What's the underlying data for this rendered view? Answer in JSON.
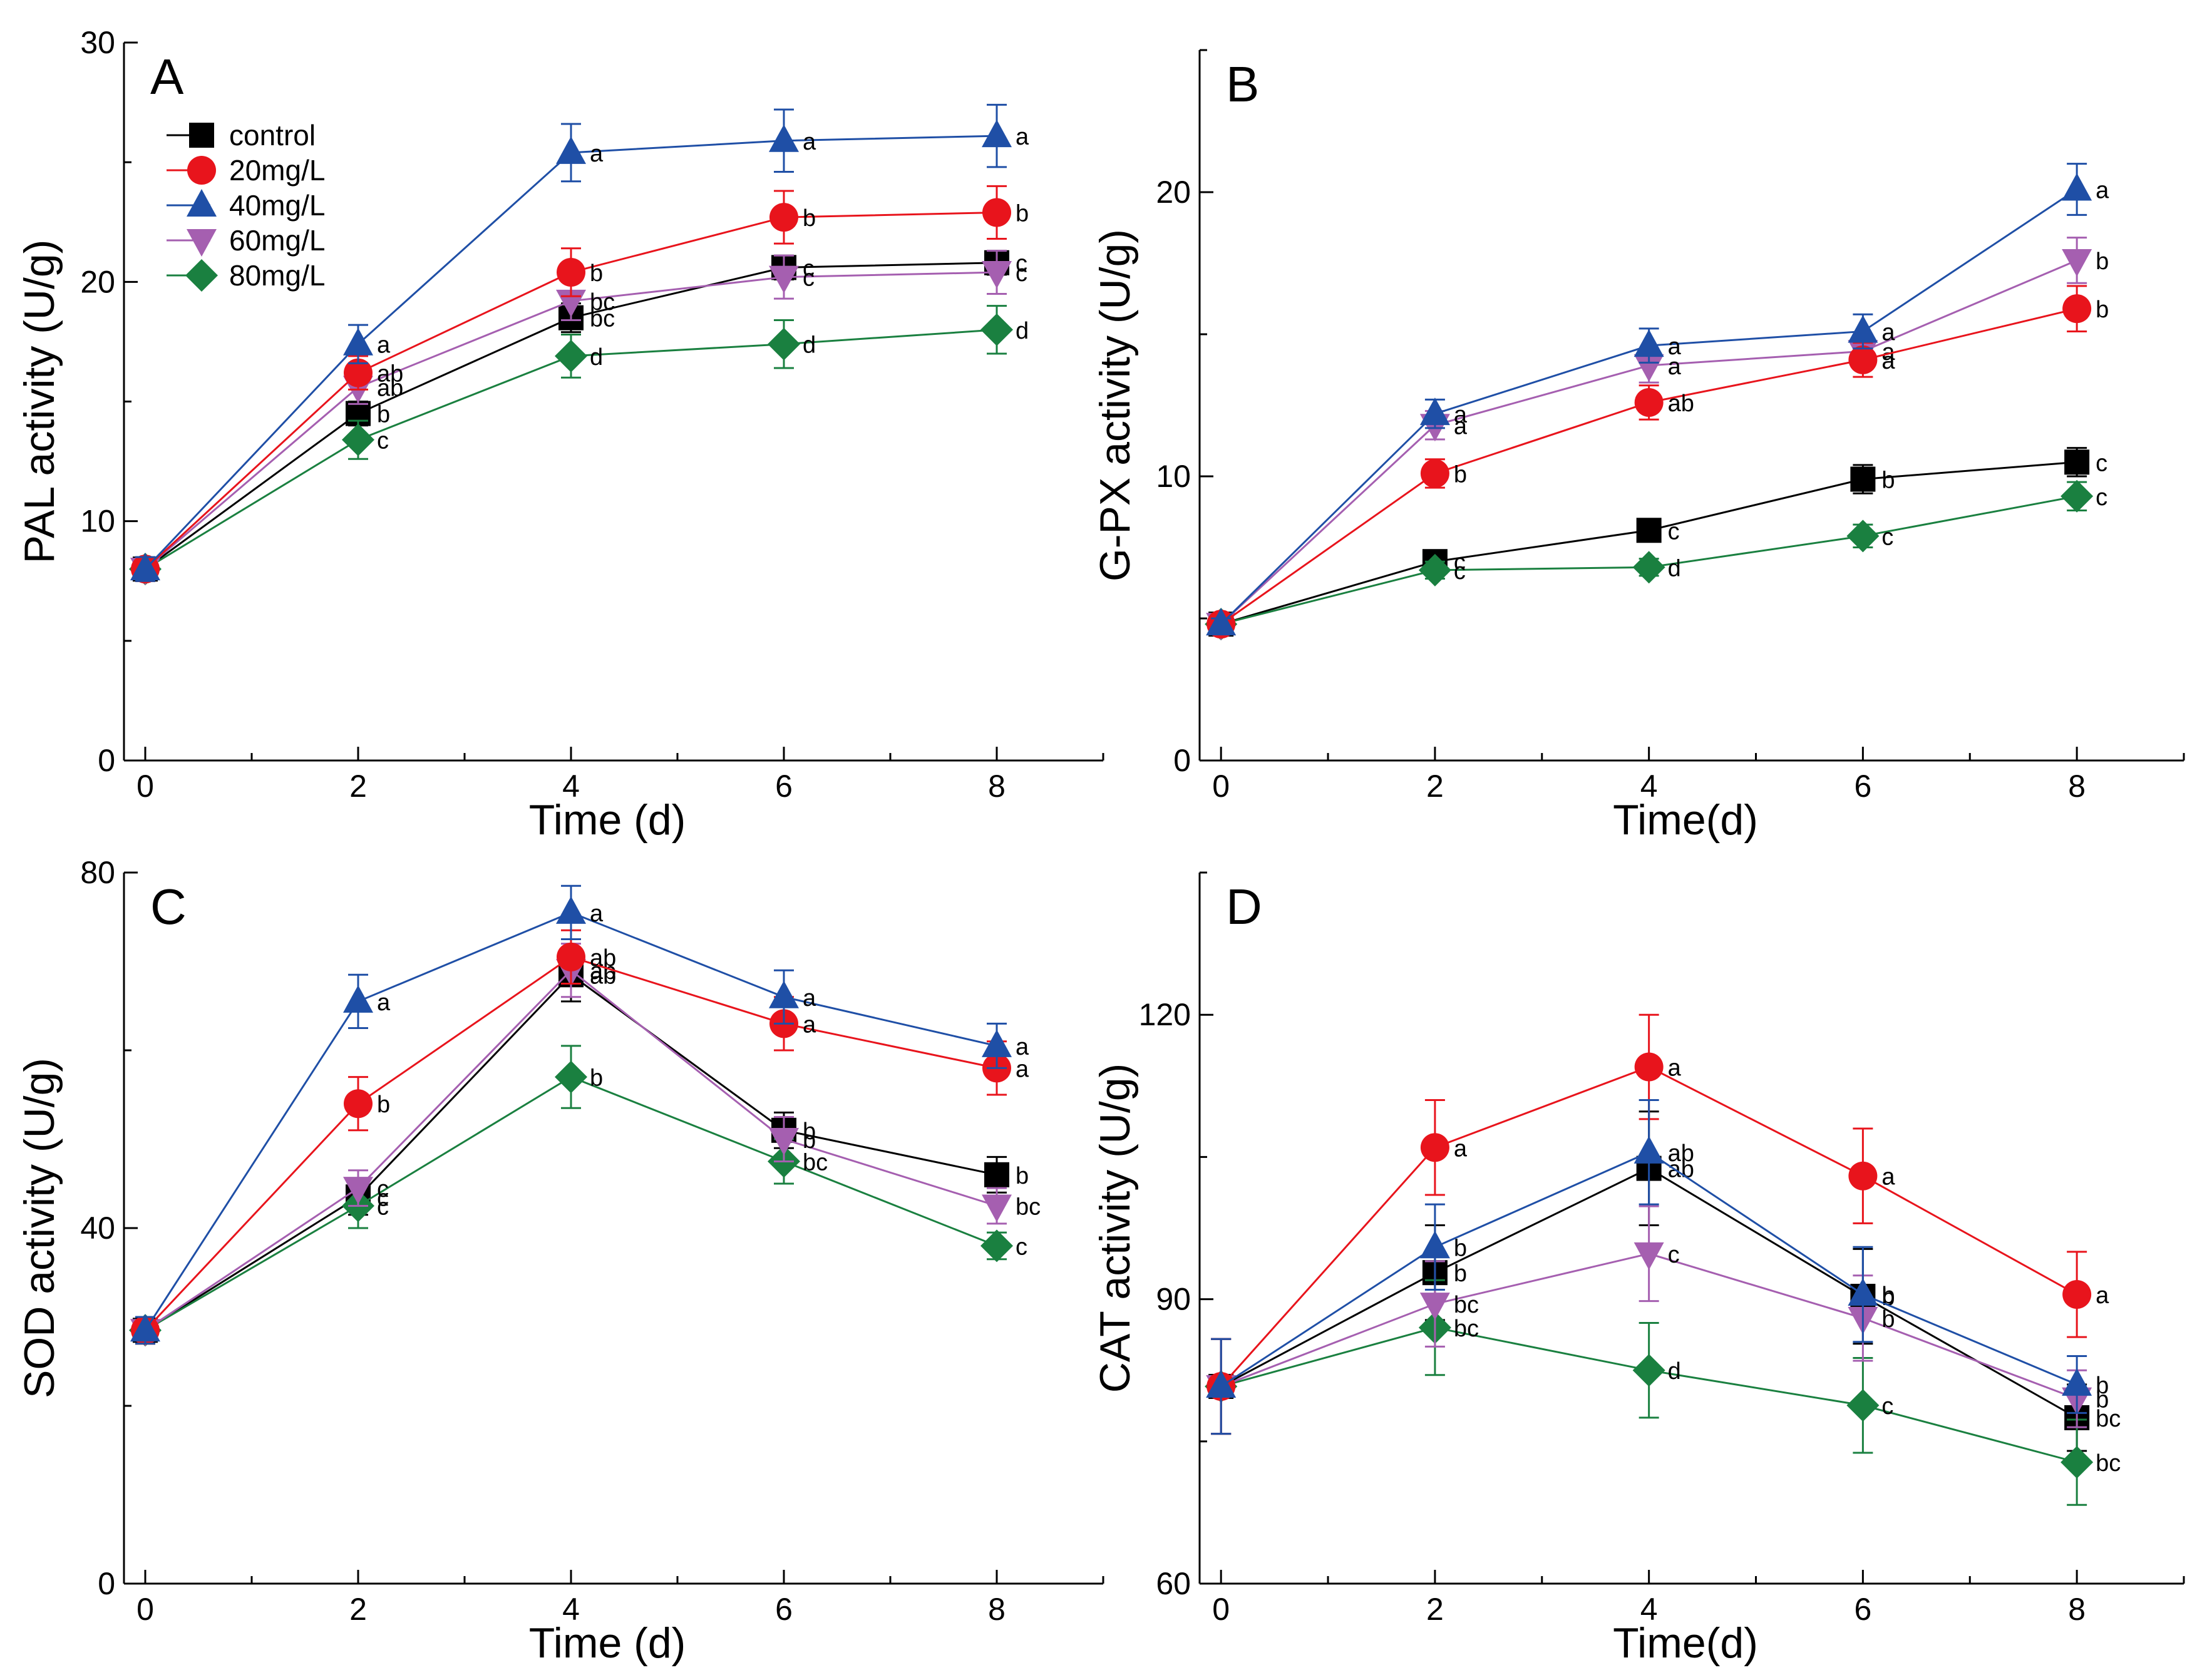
{
  "colors": {
    "control": "#000000",
    "20mg/L": "#e8141c",
    "40mg/L": "#1f4fa6",
    "60mg/L": "#a55fb0",
    "80mg/L": "#1a8040"
  },
  "legend": {
    "placement": "top-left of panel A",
    "entries": [
      {
        "key": "control",
        "label": "control",
        "marker": "square"
      },
      {
        "key": "20mg/L",
        "label": "20mg/L",
        "marker": "circle"
      },
      {
        "key": "40mg/L",
        "label": "40mg/L",
        "marker": "triangle-up"
      },
      {
        "key": "60mg/L",
        "label": "60mg/L",
        "marker": "triangle-down"
      },
      {
        "key": "80mg/L",
        "label": "80mg/L",
        "marker": "diamond"
      }
    ]
  },
  "chart_data": [
    {
      "panel": "A",
      "type": "line",
      "xlabel": "Time (d)",
      "ylabel": "PAL activity (U/g)",
      "x": [
        0,
        2,
        4,
        6,
        8
      ],
      "xlim": [
        -0.2,
        9
      ],
      "ylim": [
        0,
        30
      ],
      "yticks": [
        0,
        10,
        20,
        30
      ],
      "xticks": [
        0,
        2,
        4,
        6,
        8
      ],
      "series": [
        {
          "key": "control",
          "values": [
            8.0,
            14.5,
            18.5,
            20.6,
            20.8
          ],
          "errors": [
            0.5,
            0.5,
            0.6,
            0.5,
            0.5
          ],
          "labels": [
            "",
            "b",
            "bc",
            "c",
            "c"
          ]
        },
        {
          "key": "20mg/L",
          "values": [
            8.0,
            16.2,
            20.4,
            22.7,
            22.9
          ],
          "errors": [
            0.5,
            0.7,
            1.0,
            1.1,
            1.1
          ],
          "labels": [
            "",
            "ab",
            "b",
            "b",
            "b"
          ]
        },
        {
          "key": "40mg/L",
          "values": [
            8.0,
            17.4,
            25.4,
            25.9,
            26.1
          ],
          "errors": [
            0.5,
            0.8,
            1.2,
            1.3,
            1.3
          ],
          "labels": [
            "",
            "a",
            "a",
            "a",
            "a"
          ]
        },
        {
          "key": "60mg/L",
          "values": [
            8.0,
            15.6,
            19.2,
            20.2,
            20.4
          ],
          "errors": [
            0.5,
            0.7,
            0.8,
            0.9,
            0.9
          ],
          "labels": [
            "",
            "ab",
            "bc",
            "c",
            "c"
          ]
        },
        {
          "key": "80mg/L",
          "values": [
            8.0,
            13.4,
            16.9,
            17.4,
            18.0
          ],
          "errors": [
            0.5,
            0.8,
            0.9,
            1.0,
            1.0
          ],
          "labels": [
            "",
            "c",
            "d",
            "d",
            "d"
          ]
        }
      ]
    },
    {
      "panel": "B",
      "type": "line",
      "xlabel": "Time(d)",
      "ylabel": "G-PX activity (U/g)",
      "x": [
        0,
        2,
        4,
        6,
        8
      ],
      "xlim": [
        -0.2,
        9
      ],
      "ylim": [
        0,
        25
      ],
      "yticks": [
        0,
        10,
        20
      ],
      "xticks": [
        0,
        2,
        4,
        6,
        8
      ],
      "series": [
        {
          "key": "control",
          "values": [
            4.8,
            7.0,
            8.1,
            9.9,
            10.5
          ],
          "errors": [
            0.2,
            0.4,
            0.4,
            0.5,
            0.5
          ],
          "labels": [
            "",
            "c",
            "c",
            "b",
            "c"
          ]
        },
        {
          "key": "20mg/L",
          "values": [
            4.8,
            10.1,
            12.6,
            14.1,
            15.9
          ],
          "errors": [
            0.2,
            0.5,
            0.6,
            0.6,
            0.8
          ],
          "labels": [
            "",
            "b",
            "ab",
            "a",
            "b"
          ]
        },
        {
          "key": "40mg/L",
          "values": [
            4.8,
            12.2,
            14.6,
            15.1,
            20.1
          ],
          "errors": [
            0.2,
            0.5,
            0.6,
            0.6,
            0.9
          ],
          "labels": [
            "",
            "a",
            "a",
            "a",
            "a"
          ]
        },
        {
          "key": "60mg/L",
          "values": [
            4.8,
            11.8,
            13.9,
            14.4,
            17.6
          ],
          "errors": [
            0.2,
            0.5,
            0.6,
            0.6,
            0.8
          ],
          "labels": [
            "",
            "a",
            "a",
            "a",
            "b"
          ]
        },
        {
          "key": "80mg/L",
          "values": [
            4.8,
            6.7,
            6.8,
            7.9,
            9.3
          ],
          "errors": [
            0.2,
            0.3,
            0.3,
            0.4,
            0.5
          ],
          "labels": [
            "",
            "c",
            "d",
            "c",
            "c"
          ]
        }
      ]
    },
    {
      "panel": "C",
      "type": "line",
      "xlabel": "Time (d)",
      "ylabel": "SOD activity (U/g)",
      "x": [
        0,
        2,
        4,
        6,
        8
      ],
      "xlim": [
        -0.2,
        9
      ],
      "ylim": [
        0,
        80
      ],
      "yticks": [
        0,
        40,
        80
      ],
      "xticks": [
        0,
        2,
        4,
        6,
        8
      ],
      "series": [
        {
          "key": "control",
          "values": [
            28.5,
            43.5,
            68.5,
            51.0,
            46.0
          ],
          "errors": [
            1.5,
            2.0,
            3.0,
            2.0,
            2.0
          ],
          "labels": [
            "",
            "c",
            "ab",
            "b",
            "b"
          ]
        },
        {
          "key": "20mg/L",
          "values": [
            28.5,
            54.0,
            70.5,
            63.0,
            58.0
          ],
          "errors": [
            1.5,
            3.0,
            3.0,
            3.0,
            3.0
          ],
          "labels": [
            "",
            "b",
            "ab",
            "a",
            "a"
          ]
        },
        {
          "key": "40mg/L",
          "values": [
            28.5,
            65.5,
            75.5,
            66.0,
            60.5
          ],
          "errors": [
            1.5,
            3.0,
            3.0,
            3.0,
            2.5
          ],
          "labels": [
            "",
            "a",
            "a",
            "a",
            "a"
          ]
        },
        {
          "key": "60mg/L",
          "values": [
            28.5,
            44.5,
            69.0,
            50.0,
            42.5
          ],
          "errors": [
            1.5,
            2.0,
            3.0,
            2.5,
            2.0
          ],
          "labels": [
            "",
            "c",
            "ab",
            "b",
            "bc"
          ]
        },
        {
          "key": "80mg/L",
          "values": [
            28.5,
            42.5,
            57.0,
            47.5,
            38.0
          ],
          "errors": [
            1.5,
            2.5,
            3.5,
            2.5,
            1.5
          ],
          "labels": [
            "",
            "c",
            "b",
            "bc",
            "c"
          ]
        }
      ]
    },
    {
      "panel": "D",
      "type": "line",
      "xlabel": "Time(d)",
      "ylabel": "CAT activity (U/g)",
      "x": [
        0,
        2,
        4,
        6,
        8
      ],
      "xlim": [
        -0.2,
        9
      ],
      "ylim": [
        60,
        135
      ],
      "yticks": [
        60,
        90,
        120
      ],
      "xticks": [
        0,
        2,
        4,
        6,
        8
      ],
      "series": [
        {
          "key": "control",
          "values": [
            80.8,
            92.8,
            103.8,
            90.3,
            77.5
          ],
          "errors": [
            5.0,
            5.0,
            6.0,
            5.0,
            3.5
          ],
          "labels": [
            "",
            "b",
            "ab",
            "b",
            "bc"
          ]
        },
        {
          "key": "20mg/L",
          "values": [
            80.8,
            106.0,
            114.5,
            103.0,
            90.5
          ],
          "errors": [
            5.0,
            5.0,
            5.5,
            5.0,
            4.5
          ],
          "labels": [
            "",
            "a",
            "a",
            "a",
            "a"
          ]
        },
        {
          "key": "40mg/L",
          "values": [
            80.8,
            95.5,
            105.5,
            90.5,
            81.0
          ],
          "errors": [
            5.0,
            4.5,
            5.5,
            5.0,
            3.0
          ],
          "labels": [
            "",
            "b",
            "ab",
            "b",
            "b"
          ]
        },
        {
          "key": "60mg/L",
          "values": [
            80.8,
            89.5,
            94.8,
            88.0,
            79.5
          ],
          "errors": [
            5.0,
            4.5,
            5.0,
            4.5,
            3.0
          ],
          "labels": [
            "",
            "bc",
            "c",
            "b",
            "b"
          ]
        },
        {
          "key": "80mg/L",
          "values": [
            80.8,
            87.0,
            82.5,
            78.8,
            72.8
          ],
          "errors": [
            5.0,
            5.0,
            5.0,
            5.0,
            4.5
          ],
          "labels": [
            "",
            "bc",
            "d",
            "c",
            "bc"
          ]
        }
      ]
    }
  ]
}
